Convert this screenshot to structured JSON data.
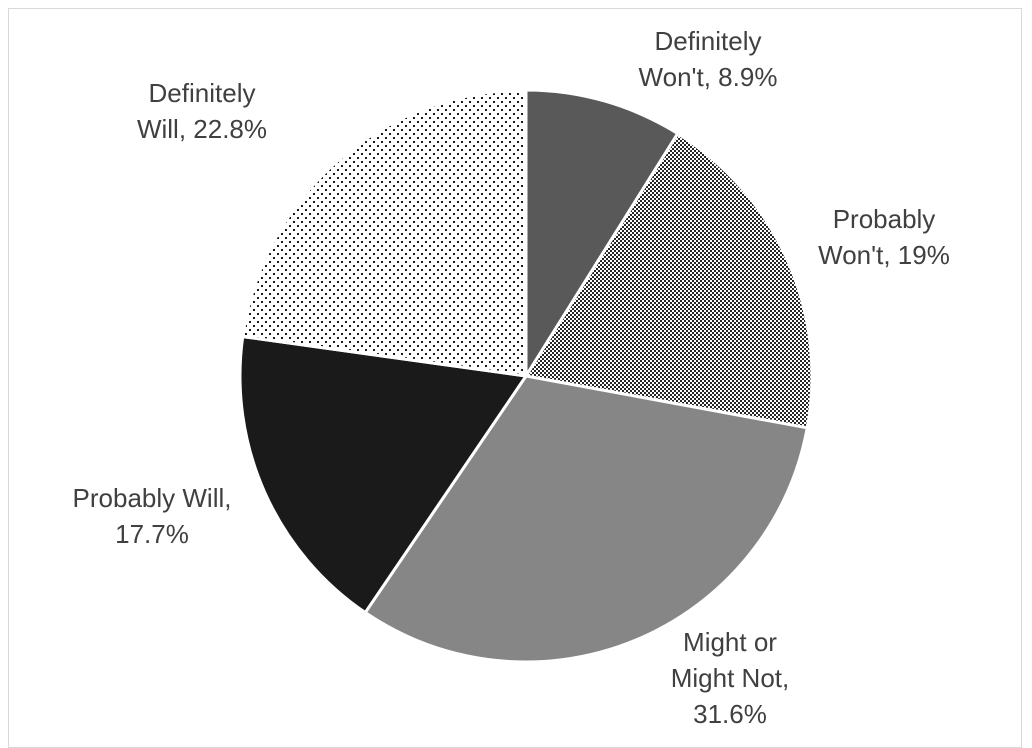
{
  "chart_data": {
    "type": "pie",
    "title": "",
    "slices": [
      {
        "category": "Definitely Won't",
        "value": 8.9,
        "label_lines": [
          "Definitely",
          "Won't, 8.9%"
        ],
        "fill": "#595959",
        "pattern": "solid"
      },
      {
        "category": "Probably Won't",
        "value": 19,
        "label_lines": [
          "Probably",
          "Won't, 19%"
        ],
        "fill": "#404040",
        "pattern": "checker"
      },
      {
        "category": "Might or Might Not",
        "value": 31.6,
        "label_lines": [
          "Might or",
          "Might Not,",
          "31.6%"
        ],
        "fill": "#868686",
        "pattern": "solid"
      },
      {
        "category": "Probably Will",
        "value": 17.7,
        "label_lines": [
          "Probably Will,",
          "17.7%"
        ],
        "fill": "#1a1a1a",
        "pattern": "solid"
      },
      {
        "category": "Definitely Will",
        "value": 22.8,
        "label_lines": [
          "Definitely",
          "Will, 22.8%"
        ],
        "fill": "#1a1a1a",
        "pattern": "dots"
      }
    ],
    "legend": "none",
    "data_labels": "category and percentage",
    "start_angle": "12 o'clock, clockwise"
  }
}
